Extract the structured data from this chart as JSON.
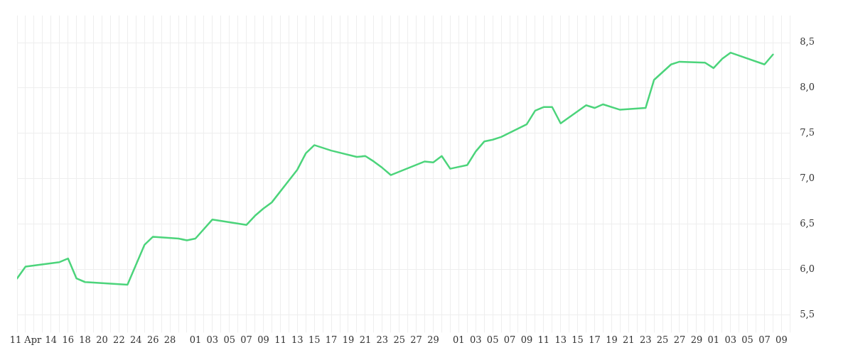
{
  "chart_data": {
    "type": "line",
    "x": [
      "--04-10",
      "--04-11",
      "--04-15",
      "--04-16",
      "--04-17",
      "--04-18",
      "--04-23",
      "--04-25",
      "--04-26",
      "--04-29",
      "--04-30",
      "--05-01",
      "--05-03",
      "--05-07",
      "--05-08",
      "--05-09",
      "--05-10",
      "--05-13",
      "--05-14",
      "--05-15",
      "--05-17",
      "--05-20",
      "--05-21",
      "--05-22",
      "--05-23",
      "--05-24",
      "--05-28",
      "--05-29",
      "--05-30",
      "--05-31",
      "--06-02",
      "--06-03",
      "--06-04",
      "--06-05",
      "--06-06",
      "--06-09",
      "--06-10",
      "--06-11",
      "--06-12",
      "--06-13",
      "--06-16",
      "--06-17",
      "--06-18",
      "--06-20",
      "--06-23",
      "--06-24",
      "--06-26",
      "--06-27",
      "--06-30",
      "--07-01",
      "--07-02",
      "--07-03",
      "--07-07",
      "--07-08"
    ],
    "series": [
      {
        "color": "#4cd47b",
        "values": [
          5.9,
          6.03,
          6.08,
          6.12,
          5.9,
          5.86,
          5.83,
          6.27,
          6.36,
          6.34,
          6.32,
          6.34,
          6.55,
          6.49,
          6.59,
          6.67,
          6.74,
          7.1,
          7.28,
          7.37,
          7.31,
          7.24,
          7.25,
          7.19,
          7.12,
          7.04,
          7.19,
          7.18,
          7.25,
          7.11,
          7.15,
          7.3,
          7.41,
          7.43,
          7.46,
          7.6,
          7.75,
          7.79,
          7.79,
          7.61,
          7.81,
          7.78,
          7.82,
          7.76,
          7.78,
          8.09,
          8.26,
          8.29,
          8.28,
          8.22,
          8.32,
          8.39,
          8.26,
          8.37
        ]
      }
    ],
    "xlim": [
      "--04-10",
      "--07-10"
    ],
    "xticks": [
      {
        "value": "--04-10",
        "label": null
      },
      {
        "value": "--04-11",
        "label": "11 Apr"
      },
      {
        "value": "--04-12",
        "label": null
      },
      {
        "value": "--04-13",
        "label": null
      },
      {
        "value": "--04-14",
        "label": "14"
      },
      {
        "value": "--04-15",
        "label": null
      },
      {
        "value": "--04-16",
        "label": "16"
      },
      {
        "value": "--04-17",
        "label": null
      },
      {
        "value": "--04-18",
        "label": "18"
      },
      {
        "value": "--04-19",
        "label": null
      },
      {
        "value": "--04-20",
        "label": "20"
      },
      {
        "value": "--04-21",
        "label": null
      },
      {
        "value": "--04-22",
        "label": "22"
      },
      {
        "value": "--04-23",
        "label": null
      },
      {
        "value": "--04-24",
        "label": "24"
      },
      {
        "value": "--04-25",
        "label": null
      },
      {
        "value": "--04-26",
        "label": "26"
      },
      {
        "value": "--04-27",
        "label": null
      },
      {
        "value": "--04-28",
        "label": "28"
      },
      {
        "value": "--04-29",
        "label": null
      },
      {
        "value": "--04-30",
        "label": null
      },
      {
        "value": "--05-01",
        "label": "01"
      },
      {
        "value": "--05-02",
        "label": null
      },
      {
        "value": "--05-03",
        "label": "03"
      },
      {
        "value": "--05-04",
        "label": null
      },
      {
        "value": "--05-05",
        "label": "05"
      },
      {
        "value": "--05-06",
        "label": null
      },
      {
        "value": "--05-07",
        "label": "07"
      },
      {
        "value": "--05-08",
        "label": null
      },
      {
        "value": "--05-09",
        "label": "09"
      },
      {
        "value": "--05-10",
        "label": null
      },
      {
        "value": "--05-11",
        "label": "11"
      },
      {
        "value": "--05-12",
        "label": null
      },
      {
        "value": "--05-13",
        "label": "13"
      },
      {
        "value": "--05-14",
        "label": null
      },
      {
        "value": "--05-15",
        "label": "15"
      },
      {
        "value": "--05-16",
        "label": null
      },
      {
        "value": "--05-17",
        "label": "17"
      },
      {
        "value": "--05-18",
        "label": null
      },
      {
        "value": "--05-19",
        "label": "19"
      },
      {
        "value": "--05-20",
        "label": null
      },
      {
        "value": "--05-21",
        "label": "21"
      },
      {
        "value": "--05-22",
        "label": null
      },
      {
        "value": "--05-23",
        "label": "23"
      },
      {
        "value": "--05-24",
        "label": null
      },
      {
        "value": "--05-25",
        "label": "25"
      },
      {
        "value": "--05-26",
        "label": null
      },
      {
        "value": "--05-27",
        "label": "27"
      },
      {
        "value": "--05-28",
        "label": null
      },
      {
        "value": "--05-29",
        "label": "29"
      },
      {
        "value": "--05-30",
        "label": null
      },
      {
        "value": "--05-31",
        "label": null
      },
      {
        "value": "--06-01",
        "label": "01"
      },
      {
        "value": "--06-02",
        "label": null
      },
      {
        "value": "--06-03",
        "label": "03"
      },
      {
        "value": "--06-04",
        "label": null
      },
      {
        "value": "--06-05",
        "label": "05"
      },
      {
        "value": "--06-06",
        "label": null
      },
      {
        "value": "--06-07",
        "label": "07"
      },
      {
        "value": "--06-08",
        "label": null
      },
      {
        "value": "--06-09",
        "label": "09"
      },
      {
        "value": "--06-10",
        "label": null
      },
      {
        "value": "--06-11",
        "label": "11"
      },
      {
        "value": "--06-12",
        "label": null
      },
      {
        "value": "--06-13",
        "label": "13"
      },
      {
        "value": "--06-14",
        "label": null
      },
      {
        "value": "--06-15",
        "label": "15"
      },
      {
        "value": "--06-16",
        "label": null
      },
      {
        "value": "--06-17",
        "label": "17"
      },
      {
        "value": "--06-18",
        "label": null
      },
      {
        "value": "--06-19",
        "label": "19"
      },
      {
        "value": "--06-20",
        "label": null
      },
      {
        "value": "--06-21",
        "label": "21"
      },
      {
        "value": "--06-22",
        "label": null
      },
      {
        "value": "--06-23",
        "label": "23"
      },
      {
        "value": "--06-24",
        "label": null
      },
      {
        "value": "--06-25",
        "label": "25"
      },
      {
        "value": "--06-26",
        "label": null
      },
      {
        "value": "--06-27",
        "label": "27"
      },
      {
        "value": "--06-28",
        "label": null
      },
      {
        "value": "--06-29",
        "label": "29"
      },
      {
        "value": "--06-30",
        "label": null
      },
      {
        "value": "--07-01",
        "label": "01"
      },
      {
        "value": "--07-02",
        "label": null
      },
      {
        "value": "--07-03",
        "label": "03"
      },
      {
        "value": "--07-04",
        "label": null
      },
      {
        "value": "--07-05",
        "label": "05"
      },
      {
        "value": "--07-06",
        "label": null
      },
      {
        "value": "--07-07",
        "label": "07"
      },
      {
        "value": "--07-08",
        "label": null
      },
      {
        "value": "--07-09",
        "label": "09"
      },
      {
        "value": "--07-10",
        "label": null
      }
    ],
    "ylim": [
      5.35,
      8.8
    ],
    "yticks": [
      {
        "value": 5.5,
        "label": "5,5"
      },
      {
        "value": 6,
        "label": "6,0"
      },
      {
        "value": 6.5,
        "label": "6,5"
      },
      {
        "value": 7,
        "label": "7,0"
      },
      {
        "value": 7.5,
        "label": "7,5"
      },
      {
        "value": 8,
        "label": "8,0"
      },
      {
        "value": 8.5,
        "label": "8,5"
      }
    ],
    "grid": true,
    "legend": false,
    "marker": "none",
    "line_style": "solid"
  }
}
